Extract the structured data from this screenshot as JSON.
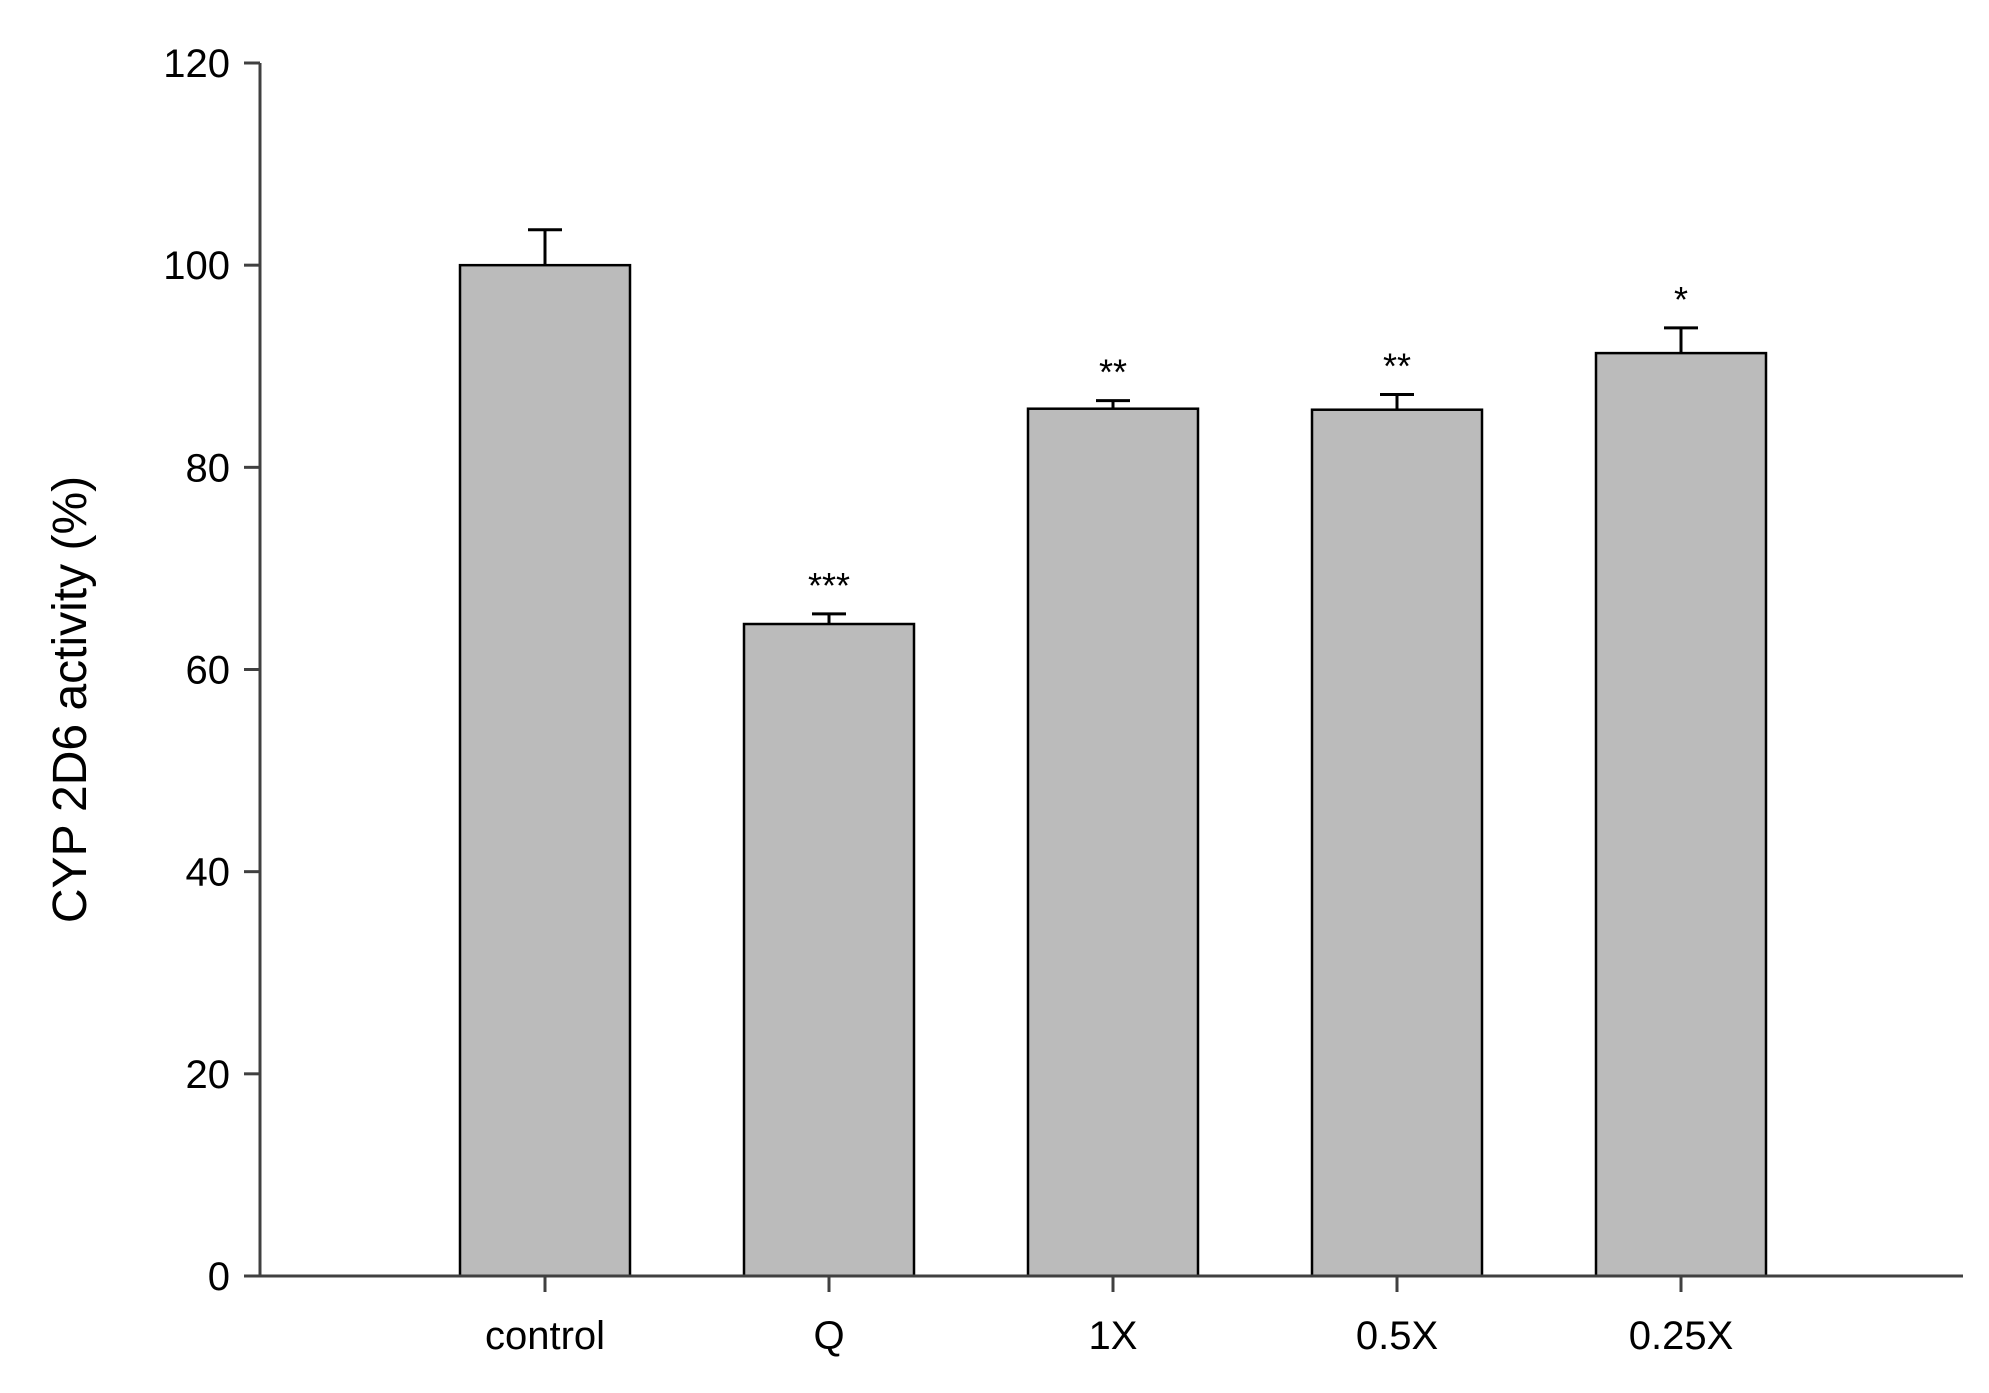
{
  "chart_data": {
    "type": "bar",
    "title": "",
    "xlabel": "",
    "ylabel": "CYP 2D6 activity (%)",
    "ylim": [
      0,
      120
    ],
    "yticks": [
      0,
      20,
      40,
      60,
      80,
      100,
      120
    ],
    "categories": [
      "control",
      "Q",
      "1X",
      "0.5X",
      "0.25X"
    ],
    "series": [
      {
        "values": [
          100,
          64.5,
          85.8,
          85.7,
          91.3
        ],
        "error_upper": [
          3.5,
          1.0,
          0.8,
          1.5,
          2.5
        ],
        "color": "#bbbbbb"
      }
    ],
    "annotations": [
      "",
      "***",
      "**",
      "**",
      "*"
    ],
    "grid": false,
    "legend": "none"
  }
}
